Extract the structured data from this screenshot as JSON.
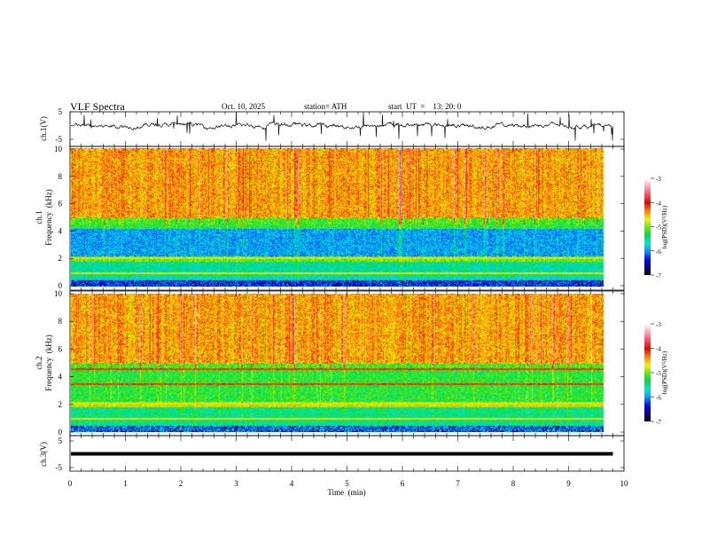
{
  "header": {
    "title": "VLF  Spectra",
    "date": "Oct. 10, 2025",
    "station": "station= ATH",
    "start_ut": "start  UT  =    13: 20: 0"
  },
  "panels": {
    "ch1_ts": {
      "ylabel": "ch.1(V)",
      "ticks": [
        "5",
        "-5"
      ]
    },
    "ch1_spec": {
      "ylabel_top": "ch.1",
      "ylabel": "Frequency  (kHz)",
      "ticks": [
        "0",
        "2",
        "4",
        "6",
        "8",
        "10"
      ]
    },
    "ch2_spec": {
      "ylabel_top": "ch.2",
      "ylabel": "Frequency  (kHz)",
      "ticks": [
        "0",
        "2",
        "4",
        "6",
        "8",
        "10"
      ]
    },
    "ch3_ts": {
      "ylabel": "ch.3(V)",
      "ticks": [
        "5",
        "-5"
      ]
    }
  },
  "colorbar": {
    "label": "log(PSD)(V²/Hz)",
    "ticks": [
      "-3",
      "-4",
      "-5",
      "-6",
      "-7"
    ]
  },
  "xaxis": {
    "label": "Time  (min)",
    "ticks": [
      "0",
      "1",
      "2",
      "3",
      "4",
      "5",
      "6",
      "7",
      "8",
      "9",
      "10"
    ]
  },
  "chart_data": [
    {
      "type": "line",
      "title": "VLF Spectra",
      "ylabel": "ch.1(V)",
      "xlabel": "Time (min)",
      "xlim": [
        0,
        10
      ],
      "ylim": [
        -5,
        5
      ],
      "data_end_min": 9.8,
      "description_level": "noisy signal around 0 V with spikes"
    },
    {
      "type": "heatmap",
      "ylabel": "ch.1 Frequency (kHz)",
      "xlim": [
        0,
        10
      ],
      "ylim": [
        0,
        10
      ],
      "zlabel": "log(PSD)(V^2/Hz)",
      "zlim": [
        -7,
        -3
      ],
      "bands": [
        {
          "f": [
            5,
            10
          ],
          "z": -4.6
        },
        {
          "f": [
            4.2,
            5
          ],
          "z": -5.3
        },
        {
          "f": [
            2.2,
            4.2
          ],
          "z": -6.0
        },
        {
          "f": [
            1.8,
            2.2
          ],
          "z": -5.1
        },
        {
          "f": [
            0.5,
            1.8
          ],
          "z": -5.6
        },
        {
          "f": [
            0,
            0.5
          ],
          "z": -6.2
        }
      ]
    },
    {
      "type": "heatmap",
      "ylabel": "ch.2 Frequency (kHz)",
      "xlim": [
        0,
        10
      ],
      "ylim": [
        0,
        10
      ],
      "zlabel": "log(PSD)(V^2/Hz)",
      "zlim": [
        -7,
        -3
      ],
      "bands": [
        {
          "f": [
            5,
            10
          ],
          "z": -4.6
        },
        {
          "f": [
            2.2,
            5
          ],
          "z": -5.3
        },
        {
          "f": [
            1.8,
            2.2
          ],
          "z": -4.8
        },
        {
          "f": [
            0.5,
            1.8
          ],
          "z": -5.5
        },
        {
          "f": [
            0,
            0.5
          ],
          "z": -6.0
        }
      ]
    },
    {
      "type": "line",
      "ylabel": "ch.3(V)",
      "xlabel": "Time (min)",
      "xlim": [
        0,
        10
      ],
      "ylim": [
        -5,
        5
      ],
      "data_end_min": 9.8,
      "constant_value": 0
    }
  ]
}
